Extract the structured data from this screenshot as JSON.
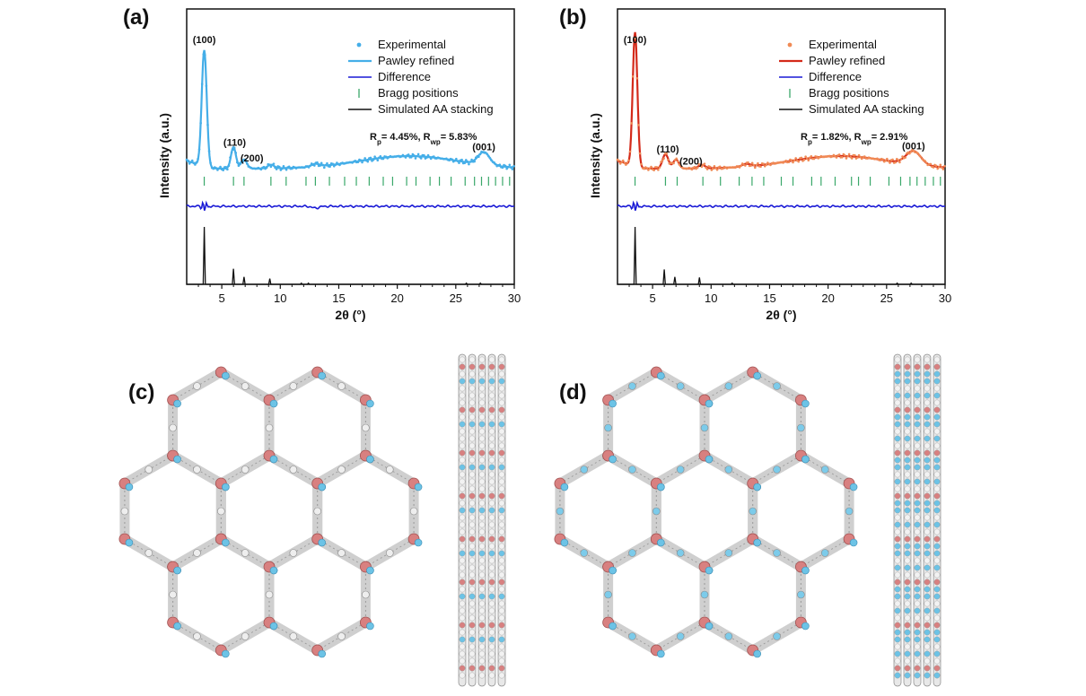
{
  "figure": {
    "panels": [
      {
        "label": "(a)",
        "colors": {
          "experimental": "#45aee8",
          "refined": "#45aee8",
          "difference": "#1a1ad6",
          "bragg": "#3aa86a",
          "simulated": "#111111"
        },
        "peak_labels": [
          "(100)",
          "(110)",
          "(200)",
          "(001)"
        ],
        "r_text": {
          "rp_label": "R",
          "rp_sub": "p",
          "rp_value": "= 4.45%, ",
          "rwp_label": "R",
          "rwp_sub": "wp",
          "rwp_value": "= 5.83%"
        }
      },
      {
        "label": "(b)",
        "colors": {
          "experimental": "#f08a55",
          "refined": "#d42a1a",
          "difference": "#1a1ad6",
          "bragg": "#3aa86a",
          "simulated": "#111111"
        },
        "peak_labels": [
          "(100)",
          "(110)",
          "(200)",
          "(001)"
        ],
        "r_text": {
          "rp_label": "R",
          "rp_sub": "p",
          "rp_value": "= 1.82%, ",
          "rwp_label": "R",
          "rwp_sub": "wp",
          "rwp_value": "= 2.91%"
        }
      },
      {
        "label": "(c)",
        "image": "hexagonal-framework-structure-top-and-side-view"
      },
      {
        "label": "(d)",
        "image": "hexagonal-framework-structure-top-and-side-view"
      }
    ],
    "legend": [
      "Experimental",
      "Pawley refined",
      "Difference",
      "Bragg positions",
      "Simulated AA stacking"
    ],
    "xlabel": "2θ (°)",
    "ylabel": "Intensity (a.u.)"
  },
  "chart_data": [
    {
      "type": "line",
      "panel": "(a)",
      "xlabel": "2θ (°)",
      "ylabel": "Intensity (a.u.)",
      "xlim": [
        2,
        30
      ],
      "xticks": [
        5,
        10,
        15,
        20,
        25,
        30
      ],
      "y_ticks_shown": false,
      "legend_position": "top-right",
      "series": [
        {
          "name": "Experimental",
          "peaks_2theta": [
            3.5,
            6.0,
            6.9,
            27.4
          ],
          "peak_labels": [
            "(100)",
            "(110)",
            "(200)",
            "(001)"
          ]
        },
        {
          "name": "Pawley refined"
        },
        {
          "name": "Difference"
        },
        {
          "name": "Bragg positions",
          "x": [
            3.5,
            6.0,
            6.9,
            9.2,
            10.5,
            12.2,
            13.0,
            14.2,
            15.5,
            16.5,
            17.6,
            18.8,
            19.6,
            20.8,
            21.6,
            22.8,
            23.6,
            24.6,
            25.8,
            26.6,
            27.2,
            27.8,
            28.4,
            29.0,
            29.6
          ]
        },
        {
          "name": "Simulated AA stacking",
          "peaks_2theta": [
            3.5,
            6.0,
            6.9,
            9.1,
            11.8,
            12.4,
            25.9,
            27.1
          ],
          "relative_intensity": [
            1.0,
            0.27,
            0.13,
            0.1,
            0.02,
            0.02,
            0.02,
            0.02
          ]
        }
      ]
    },
    {
      "type": "line",
      "panel": "(b)",
      "xlabel": "2θ (°)",
      "ylabel": "Intensity (a.u.)",
      "xlim": [
        2,
        30
      ],
      "xticks": [
        5,
        10,
        15,
        20,
        25,
        30
      ],
      "y_ticks_shown": false,
      "legend_position": "top-right",
      "series": [
        {
          "name": "Experimental",
          "peaks_2theta": [
            3.5,
            6.1,
            7.0,
            27.3
          ],
          "peak_labels": [
            "(100)",
            "(110)",
            "(200)",
            "(001)"
          ]
        },
        {
          "name": "Pawley refined"
        },
        {
          "name": "Difference"
        },
        {
          "name": "Bragg positions",
          "x": [
            3.5,
            6.1,
            7.1,
            9.3,
            10.8,
            12.4,
            13.5,
            14.5,
            16.0,
            17.0,
            18.6,
            19.4,
            20.6,
            22.0,
            22.6,
            23.6,
            25.2,
            26.2,
            27.0,
            27.6,
            28.3,
            29.0,
            29.6
          ]
        },
        {
          "name": "Simulated AA stacking",
          "peaks_2theta": [
            3.5,
            6.0,
            6.9,
            9.0,
            11.8,
            25.9,
            27.1
          ],
          "relative_intensity": [
            1.0,
            0.26,
            0.13,
            0.12,
            0.02,
            0.02,
            0.02
          ]
        }
      ]
    }
  ]
}
